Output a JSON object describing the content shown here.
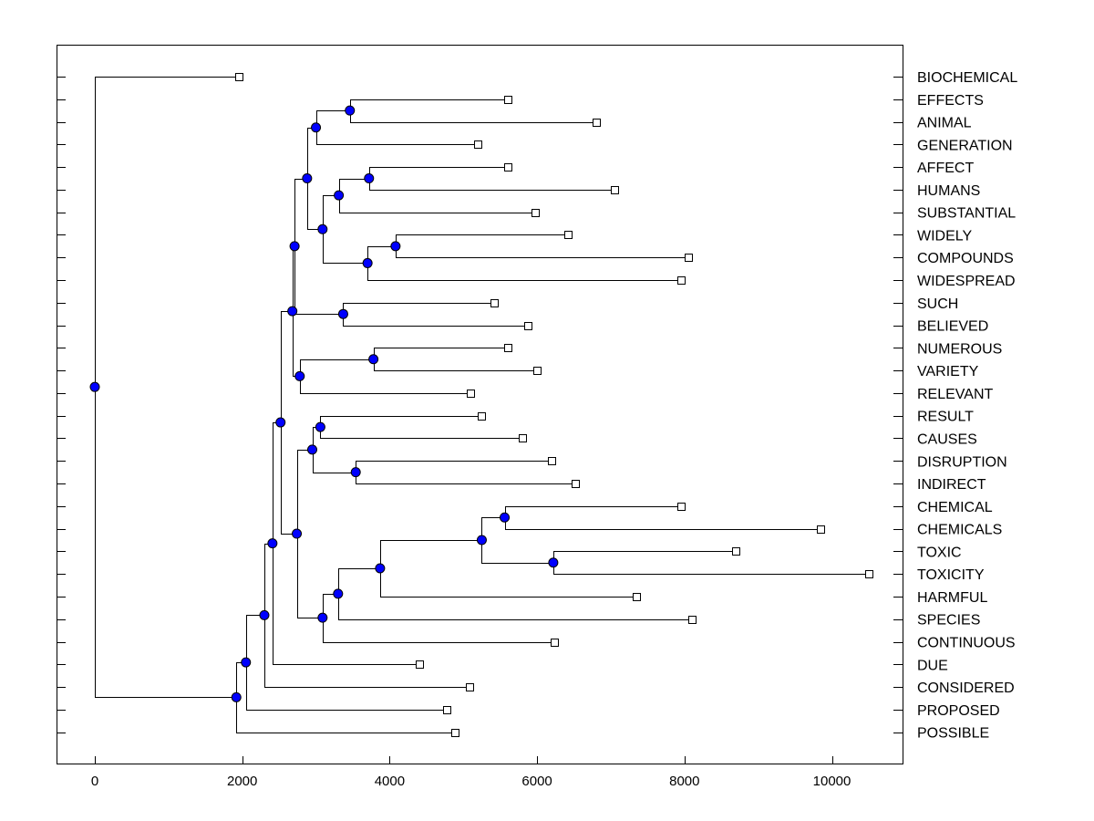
{
  "chart_data": {
    "type": "dendrogram",
    "title": "",
    "xlabel": "",
    "ylabel": "",
    "xlim": [
      -500,
      11000
    ],
    "x_ticks": [
      0,
      2000,
      4000,
      6000,
      8000,
      10000
    ],
    "x_tick_labels": [
      "0",
      "2000",
      "4000",
      "6000",
      "8000",
      "10000"
    ],
    "node_color": "#0000ff",
    "leaves": [
      {
        "label": "BIOCHEMICAL",
        "value": 1950
      },
      {
        "label": "EFFECTS",
        "value": 5600
      },
      {
        "label": "ANIMAL",
        "value": 6800
      },
      {
        "label": "GENERATION",
        "value": 5200
      },
      {
        "label": "AFFECT",
        "value": 5600
      },
      {
        "label": "HUMANS",
        "value": 7050
      },
      {
        "label": "SUBSTANTIAL",
        "value": 5980
      },
      {
        "label": "WIDELY",
        "value": 6420
      },
      {
        "label": "COMPOUNDS",
        "value": 8050
      },
      {
        "label": "WIDESPREAD",
        "value": 7950
      },
      {
        "label": "SUCH",
        "value": 5420
      },
      {
        "label": "BELIEVED",
        "value": 5870
      },
      {
        "label": "NUMEROUS",
        "value": 5600
      },
      {
        "label": "VARIETY",
        "value": 6000
      },
      {
        "label": "RELEVANT",
        "value": 5100
      },
      {
        "label": "RESULT",
        "value": 5250
      },
      {
        "label": "CAUSES",
        "value": 5800
      },
      {
        "label": "DISRUPTION",
        "value": 6200
      },
      {
        "label": "INDIRECT",
        "value": 6520
      },
      {
        "label": "CHEMICAL",
        "value": 7950
      },
      {
        "label": "CHEMICALS",
        "value": 9850
      },
      {
        "label": "TOXIC",
        "value": 8700
      },
      {
        "label": "TOXICITY",
        "value": 10500
      },
      {
        "label": "HARMFUL",
        "value": 7350
      },
      {
        "label": "SPECIES",
        "value": 8100
      },
      {
        "label": "CONTINUOUS",
        "value": 6230
      },
      {
        "label": "DUE",
        "value": 4400
      },
      {
        "label": "CONSIDERED",
        "value": 5080
      },
      {
        "label": "PROPOSED",
        "value": 4770
      },
      {
        "label": "POSSIBLE",
        "value": 4880
      }
    ],
    "nodes": [
      {
        "id": "n_effects_animal",
        "value": 3460,
        "children": [
          "L1",
          "L2"
        ]
      },
      {
        "id": "n_gen",
        "value": 3000,
        "children": [
          "n_effects_animal",
          "L3"
        ]
      },
      {
        "id": "n_affect_humans",
        "value": 3720,
        "children": [
          "L4",
          "L5"
        ]
      },
      {
        "id": "n_subst",
        "value": 3310,
        "children": [
          "n_affect_humans",
          "L6"
        ]
      },
      {
        "id": "n_widely_comp",
        "value": 4080,
        "children": [
          "L7",
          "L8"
        ]
      },
      {
        "id": "n_widespread",
        "value": 3700,
        "children": [
          "n_widely_comp",
          "L9"
        ]
      },
      {
        "id": "n_grpB",
        "value": 3090,
        "children": [
          "n_subst",
          "n_widespread"
        ]
      },
      {
        "id": "n_grpAB",
        "value": 2880,
        "children": [
          "n_gen",
          "n_grpB"
        ]
      },
      {
        "id": "n_such_bel",
        "value": 3370,
        "children": [
          "L10",
          "L11"
        ]
      },
      {
        "id": "n_upper1",
        "value": 2710,
        "children": [
          "n_grpAB",
          "n_such_bel"
        ]
      },
      {
        "id": "n_num_var",
        "value": 3780,
        "children": [
          "L12",
          "L13"
        ]
      },
      {
        "id": "n_relevant",
        "value": 2780,
        "children": [
          "n_num_var",
          "L14"
        ]
      },
      {
        "id": "n_upper2",
        "value": 2680,
        "children": [
          "n_upper1",
          "n_relevant"
        ]
      },
      {
        "id": "n_res_cau",
        "value": 3060,
        "children": [
          "L15",
          "L16"
        ]
      },
      {
        "id": "n_dis_ind",
        "value": 3540,
        "children": [
          "L17",
          "L18"
        ]
      },
      {
        "id": "n_mid",
        "value": 2950,
        "children": [
          "n_res_cau",
          "n_dis_ind"
        ]
      },
      {
        "id": "n_chem",
        "value": 5560,
        "children": [
          "L19",
          "L20"
        ]
      },
      {
        "id": "n_tox",
        "value": 6220,
        "children": [
          "L21",
          "L22"
        ]
      },
      {
        "id": "n_chem_tox",
        "value": 5250,
        "children": [
          "n_chem",
          "n_tox"
        ]
      },
      {
        "id": "n_harmful",
        "value": 3870,
        "children": [
          "n_chem_tox",
          "L23"
        ]
      },
      {
        "id": "n_species",
        "value": 3300,
        "children": [
          "n_harmful",
          "L24"
        ]
      },
      {
        "id": "n_continuous",
        "value": 3090,
        "children": [
          "n_species",
          "L25"
        ]
      },
      {
        "id": "n_lowblock",
        "value": 2740,
        "children": [
          "n_mid",
          "n_continuous"
        ]
      },
      {
        "id": "n_big",
        "value": 2520,
        "children": [
          "n_upper2",
          "n_lowblock"
        ]
      },
      {
        "id": "n_due",
        "value": 2410,
        "children": [
          "n_big",
          "L26"
        ]
      },
      {
        "id": "n_considered",
        "value": 2300,
        "children": [
          "n_due",
          "L27"
        ]
      },
      {
        "id": "n_proposed",
        "value": 2050,
        "children": [
          "n_considered",
          "L28"
        ]
      },
      {
        "id": "n_possible",
        "value": 1920,
        "children": [
          "n_proposed",
          "L29"
        ]
      },
      {
        "id": "root",
        "value": 0,
        "children": [
          "L0",
          "n_possible"
        ]
      }
    ]
  }
}
